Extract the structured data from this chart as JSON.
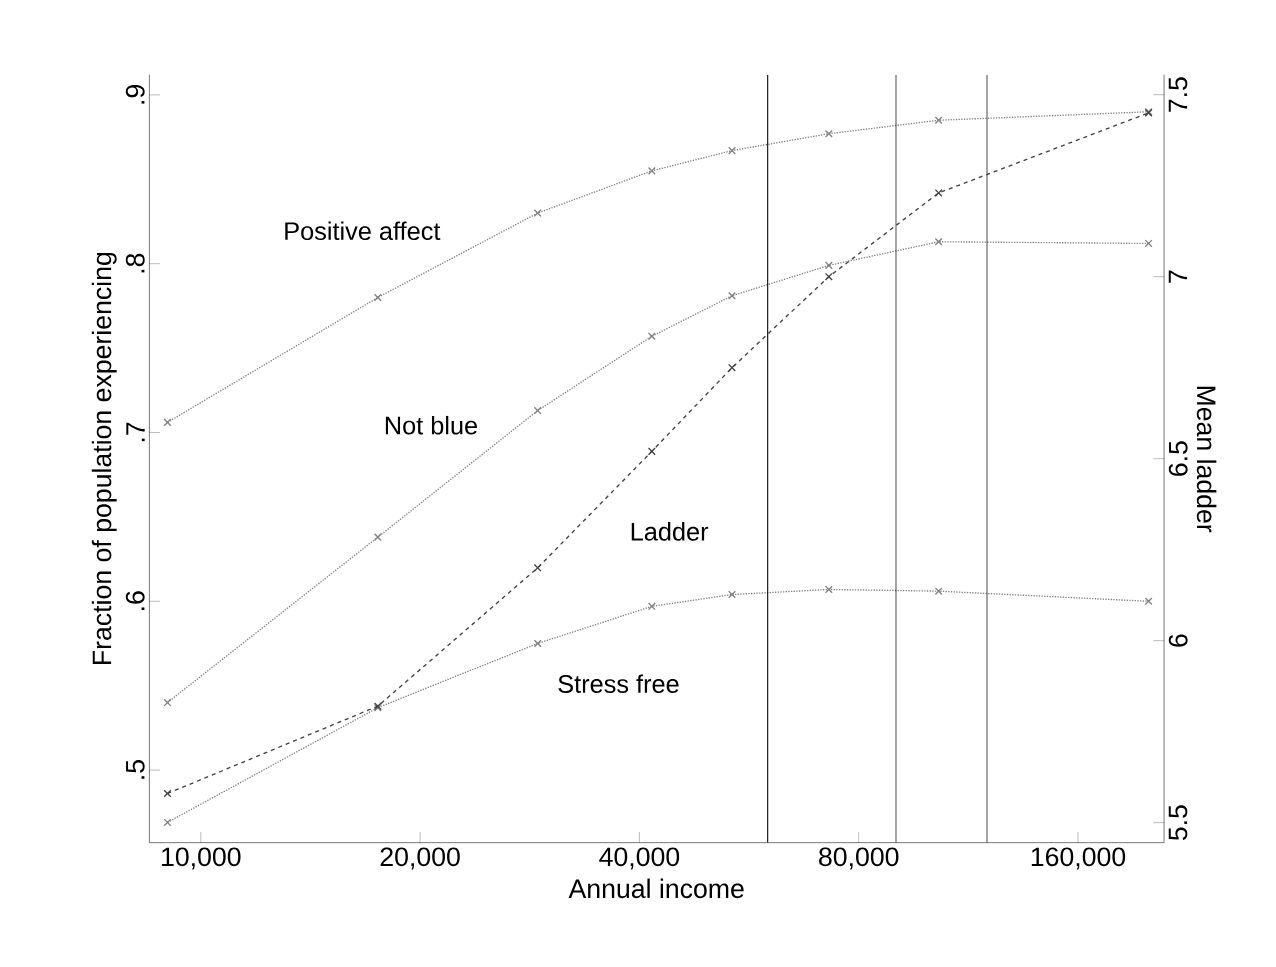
{
  "chart_data": {
    "type": "line",
    "xlabel": "Annual income",
    "ylabel": "Fraction of population experiencing",
    "y2label": "Mean ladder",
    "log": "x",
    "grid": false,
    "legend": false,
    "marker": "cross",
    "xlim": [
      8500,
      210000
    ],
    "xticks": [
      {
        "value": 10000,
        "label": "10,000"
      },
      {
        "value": 20000,
        "label": "20,000"
      },
      {
        "value": 40000,
        "label": "40,000"
      },
      {
        "value": 80000,
        "label": "80,000"
      },
      {
        "value": 160000,
        "label": "160,000"
      }
    ],
    "ylim": [
      0.457,
      0.912
    ],
    "yticks": [
      {
        "value": 0.5,
        "label": ".5"
      },
      {
        "value": 0.6,
        "label": ".6"
      },
      {
        "value": 0.7,
        "label": ".7"
      },
      {
        "value": 0.8,
        "label": ".8"
      },
      {
        "value": 0.9,
        "label": ".9"
      }
    ],
    "y2lim": [
      5.445,
      7.555
    ],
    "y2ticks": [
      5.5,
      6,
      6.5,
      7,
      7.5
    ],
    "x": [
      9000,
      17500,
      29000,
      41600,
      53600,
      72800,
      103000,
      200000
    ],
    "series": [
      {
        "name": "Positive affect",
        "color": "#808080",
        "line_style": "dotted",
        "values": [
          0.706,
          0.78,
          0.83,
          0.855,
          0.867,
          0.877,
          0.885,
          0.89
        ]
      },
      {
        "name": "Not blue",
        "color": "#808080",
        "line_style": "dotted",
        "values": [
          0.54,
          0.638,
          0.713,
          0.757,
          0.781,
          0.799,
          0.813,
          0.812
        ]
      },
      {
        "name": "Stress free",
        "color": "#808080",
        "line_style": "dotted",
        "values": [
          0.469,
          0.537,
          0.575,
          0.597,
          0.604,
          0.607,
          0.606,
          0.6
        ]
      },
      {
        "name": "Ladder",
        "color": "#404040",
        "line_style": "dashed",
        "axis": "y2",
        "values": [
          5.58,
          5.82,
          6.2,
          6.52,
          6.75,
          7.0,
          7.23,
          7.45
        ]
      }
    ],
    "ref_lines": [
      {
        "axis": "x",
        "value": 60000,
        "color": "#000000"
      },
      {
        "axis": "x",
        "value": 90000,
        "color": "#000000"
      },
      {
        "axis": "x",
        "value": 120000,
        "color": "#000000"
      }
    ]
  }
}
